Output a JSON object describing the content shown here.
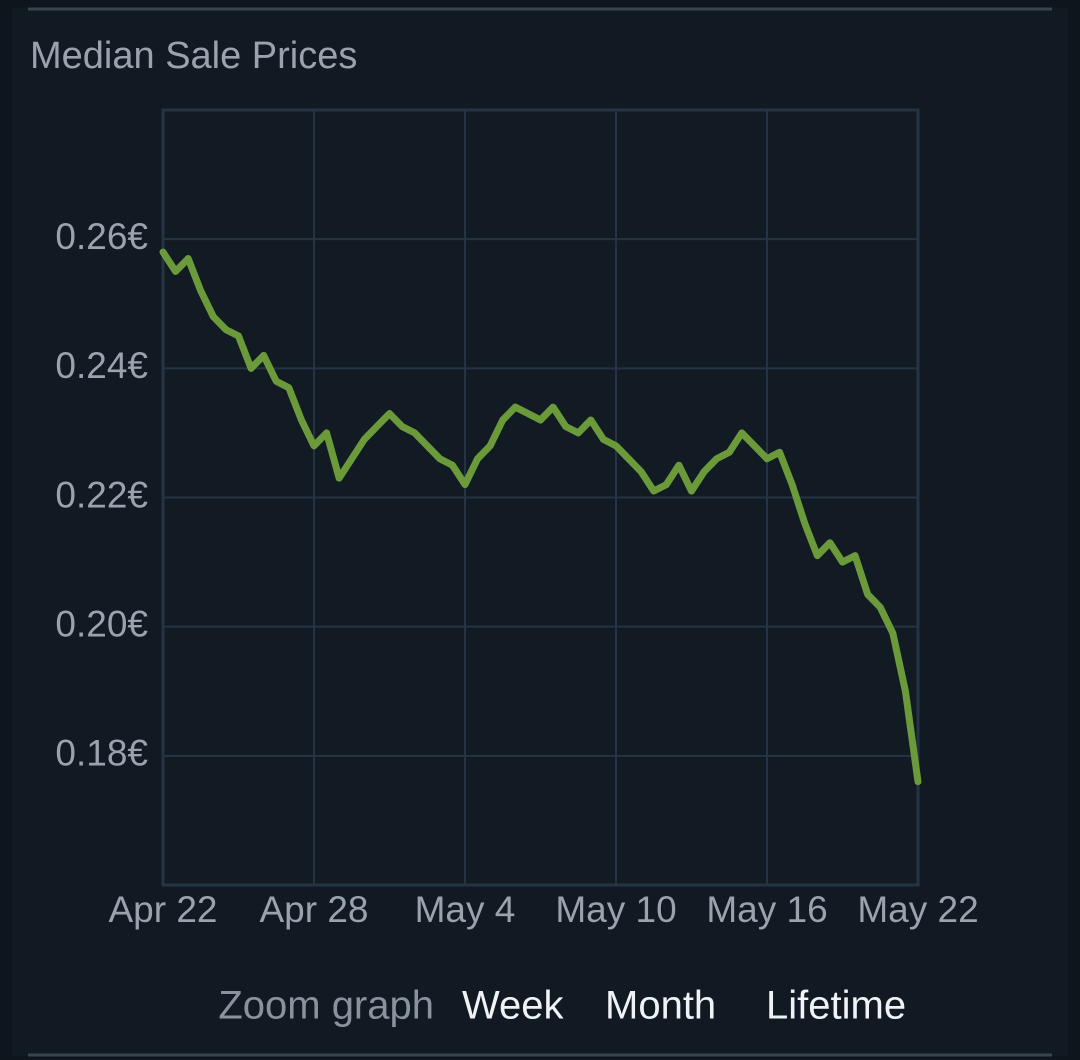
{
  "chart_data": {
    "type": "line",
    "title": "Median Sale Prices",
    "color": "#6b9a3a",
    "grid": true,
    "x": [
      0,
      0.5,
      1,
      1.5,
      2,
      2.5,
      3,
      3.5,
      4,
      4.5,
      5,
      5.5,
      6,
      6.5,
      7,
      7.5,
      8,
      8.5,
      9,
      9.5,
      10,
      10.5,
      11,
      11.5,
      12,
      12.5,
      13,
      13.5,
      14,
      14.5,
      15,
      15.5,
      16,
      16.5,
      17,
      17.5,
      18,
      18.5,
      19,
      19.5,
      20,
      20.5,
      21,
      21.5,
      22,
      22.5,
      23,
      23.5,
      24,
      24.5,
      25,
      25.5,
      26,
      26.5,
      27,
      27.5,
      28,
      28.5,
      29,
      29.5,
      30
    ],
    "values": [
      0.258,
      0.255,
      0.257,
      0.252,
      0.248,
      0.246,
      0.245,
      0.24,
      0.242,
      0.238,
      0.237,
      0.232,
      0.228,
      0.23,
      0.223,
      0.226,
      0.229,
      0.231,
      0.233,
      0.231,
      0.23,
      0.228,
      0.226,
      0.225,
      0.222,
      0.226,
      0.228,
      0.232,
      0.234,
      0.233,
      0.232,
      0.234,
      0.231,
      0.23,
      0.232,
      0.229,
      0.228,
      0.226,
      0.224,
      0.221,
      0.222,
      0.225,
      0.221,
      0.224,
      0.226,
      0.227,
      0.23,
      0.228,
      0.226,
      0.227,
      0.222,
      0.216,
      0.211,
      0.213,
      0.21,
      0.211,
      0.205,
      0.203,
      0.199,
      0.19,
      0.176
    ],
    "xlim": [
      0,
      30
    ],
    "xticks": [
      {
        "value": 0,
        "label": "Apr 22"
      },
      {
        "value": 6,
        "label": "Apr 28"
      },
      {
        "value": 12,
        "label": "May 4"
      },
      {
        "value": 18,
        "label": "May 10"
      },
      {
        "value": 24,
        "label": "May 16"
      },
      {
        "value": 30,
        "label": "May 22"
      }
    ],
    "ylim": [
      0.16,
      0.28
    ],
    "yticks": [
      {
        "value": 0.18,
        "label": "0.18€"
      },
      {
        "value": 0.2,
        "label": "0.20€"
      },
      {
        "value": 0.22,
        "label": "0.22€"
      },
      {
        "value": 0.24,
        "label": "0.24€"
      },
      {
        "value": 0.26,
        "label": "0.26€"
      }
    ]
  },
  "zoom": {
    "label": "Zoom graph",
    "options": [
      "Week",
      "Month",
      "Lifetime"
    ]
  }
}
